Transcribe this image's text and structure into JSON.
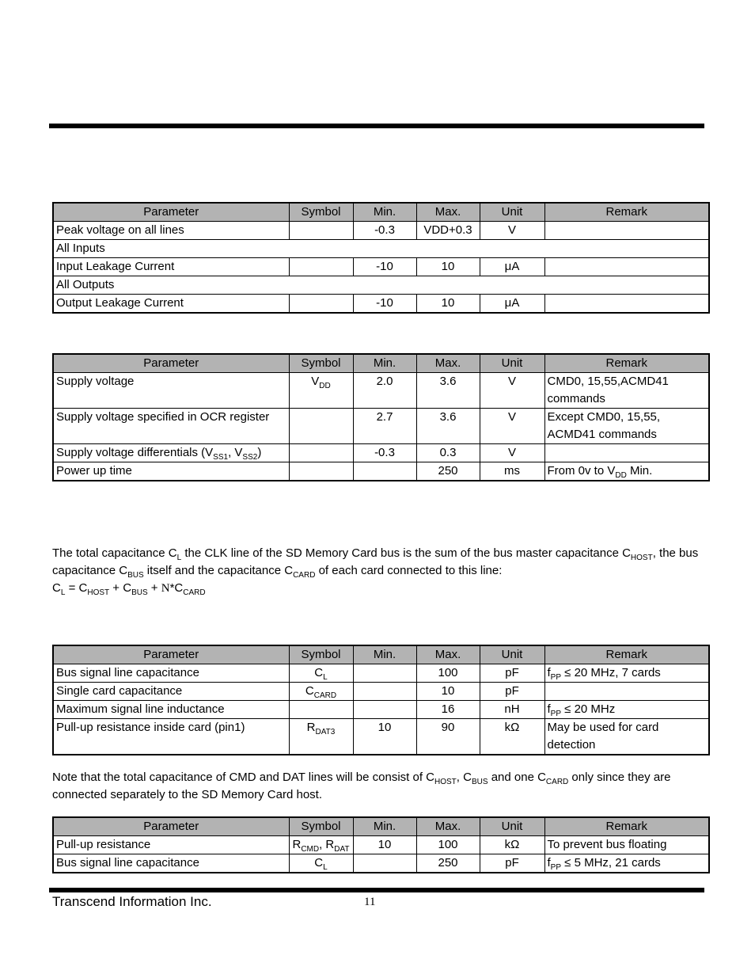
{
  "colors": {
    "table_header_bg": "#b3b3b3",
    "rule": "#000000",
    "text": "#000000",
    "page_bg": "#ffffff"
  },
  "table_columns": [
    "Parameter",
    "Symbol",
    "Min.",
    "Max.",
    "Unit",
    "Remark"
  ],
  "tables": [
    {
      "name": "absolute-maximum-ratings",
      "rows": [
        {
          "cells": [
            "Peak voltage on all lines",
            "",
            "-0.3",
            "VDD+0.3",
            "V",
            ""
          ]
        },
        {
          "span": "All Inputs"
        },
        {
          "cells": [
            "Input Leakage Current",
            "",
            "-10",
            "10",
            "μA",
            ""
          ]
        },
        {
          "span": "All Outputs"
        },
        {
          "cells": [
            "Output Leakage Current",
            "",
            "-10",
            "10",
            "μA",
            ""
          ]
        }
      ]
    },
    {
      "name": "operating-voltage",
      "rows": [
        {
          "cells": [
            "Supply voltage",
            "V_{DD}",
            "2.0",
            "3.6",
            "V",
            "CMD0, 15,55,ACMD41\ncommands"
          ]
        },
        {
          "cells": [
            "Supply voltage specified in OCR register",
            "",
            "2.7",
            "3.6",
            "V",
            "Except CMD0, 15,55,\nACMD41 commands"
          ]
        },
        {
          "cells": [
            "Supply voltage differentials (V_{SS1}, V_{SS2})",
            "",
            "-0.3",
            "0.3",
            "V",
            ""
          ]
        },
        {
          "cells": [
            "Power up time",
            "",
            "",
            "250",
            "ms",
            "From 0v to V_{DD} Min."
          ]
        }
      ]
    },
    {
      "name": "bus-signal-line-load-clk",
      "rows": [
        {
          "cells": [
            "Bus signal line capacitance",
            "C_{L}",
            "",
            "100",
            "pF",
            "f_{PP} ≤ 20 MHz, 7 cards"
          ]
        },
        {
          "cells": [
            "Single card capacitance",
            "C_{CARD}",
            "",
            "10",
            "pF",
            ""
          ]
        },
        {
          "cells": [
            "Maximum signal line inductance",
            "",
            "",
            "16",
            "nH",
            "f_{PP} ≤ 20 MHz"
          ]
        },
        {
          "cells": [
            "Pull-up resistance inside card (pin1)",
            "R_{DAT3}",
            "10",
            "90",
            "kΩ",
            "May be used for card\ndetection"
          ]
        }
      ]
    },
    {
      "name": "bus-signal-line-load-cmd-dat",
      "rows": [
        {
          "cells": [
            "Pull-up resistance",
            "R_{CMD}, R_{DAT}",
            "10",
            "100",
            "kΩ",
            "To prevent bus floating"
          ]
        },
        {
          "cells": [
            "Bus signal line capacitance",
            "C_{L}",
            "",
            "250",
            "pF",
            "f_{PP} ≤ 5 MHz, 21 cards"
          ]
        }
      ]
    }
  ],
  "paragraphs": [
    {
      "name": "clk-capacitance-paragraph",
      "lines": [
        "The total capacitance C_{L} the CLK line of the SD Memory Card bus is the sum of the bus master capacitance C_{HOST}, the bus",
        "capacitance C_{BUS} itself and the capacitance C_{CARD} of each card connected to this line:",
        "C_{L} = C_{HOST} + C_{BUS} + {{serif:N}}*C_{CARD}"
      ]
    },
    {
      "name": "cmd-dat-capacitance-note",
      "lines": [
        "Note that the total capacitance of CMD and DAT lines will be consist of C_{HOST}, C_{BUS} and one C_{CARD} only since they are",
        "connected separately to the SD Memory Card host."
      ]
    }
  ],
  "footer": {
    "company": "Transcend Information Inc.",
    "page_number": "11"
  }
}
